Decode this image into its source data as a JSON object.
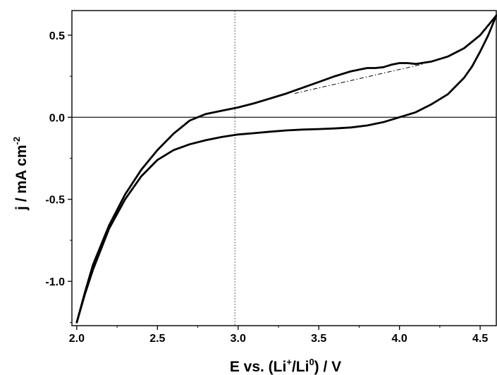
{
  "chart_data": {
    "type": "line",
    "title": "",
    "xlabel": {
      "main": "E vs. (Li",
      "sup1": "+",
      "mid": "/Li",
      "sup2": "0",
      "tail": ") / V"
    },
    "ylabel": {
      "main": "j  / mA cm",
      "sup": "-2"
    },
    "xlim": [
      1.97,
      4.6
    ],
    "ylim": [
      -1.27,
      0.65
    ],
    "xticks": [
      2.0,
      2.5,
      3.0,
      3.5,
      4.0,
      4.5
    ],
    "xtick_labels": [
      "2.0",
      "2.5",
      "3.0",
      "3.5",
      "4.0",
      "4.5"
    ],
    "yticks": [
      0.5,
      0.0,
      -0.5,
      -1.0
    ],
    "ytick_labels": [
      "0.5",
      "0.0",
      "-0.5",
      "-1.0"
    ],
    "grid": false,
    "reference_lines": {
      "zero_current": 0.0,
      "vertical_potential": 2.98
    },
    "series": [
      {
        "x": [
          2.0,
          2.05,
          2.1,
          2.2,
          2.3,
          2.4,
          2.5,
          2.6,
          2.7,
          2.8,
          2.9,
          3.0,
          3.1,
          3.2,
          3.3,
          3.4,
          3.5,
          3.6,
          3.7,
          3.8,
          3.85,
          3.9,
          3.95,
          4.0,
          4.05,
          4.1,
          4.2,
          4.3,
          4.4,
          4.5,
          4.6
        ],
        "y": [
          -1.25,
          -1.07,
          -0.9,
          -0.66,
          -0.47,
          -0.32,
          -0.2,
          -0.1,
          -0.02,
          0.02,
          0.04,
          0.06,
          0.085,
          0.115,
          0.145,
          0.18,
          0.215,
          0.25,
          0.28,
          0.3,
          0.3,
          0.305,
          0.32,
          0.33,
          0.33,
          0.325,
          0.34,
          0.37,
          0.42,
          0.5,
          0.62
        ]
      },
      {
        "x": [
          4.6,
          4.55,
          4.5,
          4.45,
          4.4,
          4.3,
          4.2,
          4.1,
          4.0,
          3.9,
          3.8,
          3.7,
          3.6,
          3.5,
          3.4,
          3.3,
          3.2,
          3.1,
          3.0,
          2.9,
          2.8,
          2.7,
          2.6,
          2.5,
          2.4,
          2.3,
          2.2,
          2.1,
          2.05,
          2.0
        ],
        "y": [
          0.62,
          0.5,
          0.4,
          0.31,
          0.24,
          0.14,
          0.08,
          0.03,
          0.0,
          -0.03,
          -0.05,
          -0.062,
          -0.068,
          -0.072,
          -0.075,
          -0.08,
          -0.088,
          -0.097,
          -0.105,
          -0.12,
          -0.14,
          -0.165,
          -0.2,
          -0.26,
          -0.36,
          -0.5,
          -0.68,
          -0.93,
          -1.08,
          -1.25
        ]
      }
    ],
    "baseline": {
      "x": [
        3.35,
        4.15
      ],
      "y": [
        0.145,
        0.325
      ]
    }
  }
}
